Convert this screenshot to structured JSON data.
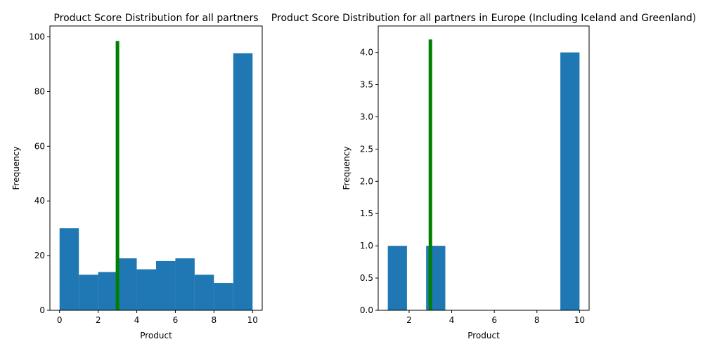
{
  "chart_data": [
    {
      "type": "bar",
      "title": "Product Score Distribution for all partners",
      "xlabel": "Product",
      "ylabel": "Frequency",
      "xlim": [
        -0.5,
        10.5
      ],
      "ylim": [
        0,
        104
      ],
      "xticks": [
        0,
        2,
        4,
        6,
        8,
        10
      ],
      "xtick_labels": [
        "0",
        "2",
        "4",
        "6",
        "8",
        "10"
      ],
      "yticks": [
        0,
        20,
        40,
        60,
        80,
        100
      ],
      "ytick_labels": [
        "0",
        "20",
        "40",
        "60",
        "80",
        "100"
      ],
      "bins": [
        {
          "x0": 0,
          "x1": 1,
          "value": 30
        },
        {
          "x0": 1,
          "x1": 2,
          "value": 13
        },
        {
          "x0": 2,
          "x1": 3,
          "value": 14
        },
        {
          "x0": 3,
          "x1": 4,
          "value": 19
        },
        {
          "x0": 4,
          "x1": 5,
          "value": 15
        },
        {
          "x0": 5,
          "x1": 6,
          "value": 18
        },
        {
          "x0": 6,
          "x1": 7,
          "value": 19
        },
        {
          "x0": 7,
          "x1": 8,
          "value": 13
        },
        {
          "x0": 8,
          "x1": 9,
          "value": 10
        },
        {
          "x0": 9,
          "x1": 10,
          "value": 94
        }
      ],
      "marker_line": {
        "x": 3,
        "y_top": 98.5,
        "color": "#008000"
      },
      "bar_color": "#1f77b4",
      "grid": false
    },
    {
      "type": "bar",
      "title": "Product Score Distribution for all partners in Europe (Including Iceland and Greenland)",
      "xlabel": "Product",
      "ylabel": "Frequency",
      "xlim": [
        0.55,
        10.45
      ],
      "ylim": [
        0,
        4.41
      ],
      "xticks": [
        2,
        4,
        6,
        8,
        10
      ],
      "xtick_labels": [
        "2",
        "4",
        "6",
        "8",
        "10"
      ],
      "yticks": [
        0,
        0.5,
        1.0,
        1.5,
        2.0,
        2.5,
        3.0,
        3.5,
        4.0
      ],
      "ytick_labels": [
        "0.0",
        "0.5",
        "1.0",
        "1.5",
        "2.0",
        "2.5",
        "3.0",
        "3.5",
        "4.0"
      ],
      "bins": [
        {
          "x0": 1.0,
          "x1": 1.9,
          "value": 1
        },
        {
          "x0": 1.9,
          "x1": 2.8,
          "value": 0
        },
        {
          "x0": 2.8,
          "x1": 3.7,
          "value": 1
        },
        {
          "x0": 3.7,
          "x1": 4.6,
          "value": 0
        },
        {
          "x0": 4.6,
          "x1": 5.5,
          "value": 0
        },
        {
          "x0": 5.5,
          "x1": 6.4,
          "value": 0
        },
        {
          "x0": 6.4,
          "x1": 7.3,
          "value": 0
        },
        {
          "x0": 7.3,
          "x1": 8.2,
          "value": 0
        },
        {
          "x0": 8.2,
          "x1": 9.1,
          "value": 0
        },
        {
          "x0": 9.1,
          "x1": 10.0,
          "value": 4
        }
      ],
      "marker_line": {
        "x": 3,
        "y_top": 4.2,
        "color": "#008000"
      },
      "bar_color": "#1f77b4",
      "grid": false
    }
  ]
}
